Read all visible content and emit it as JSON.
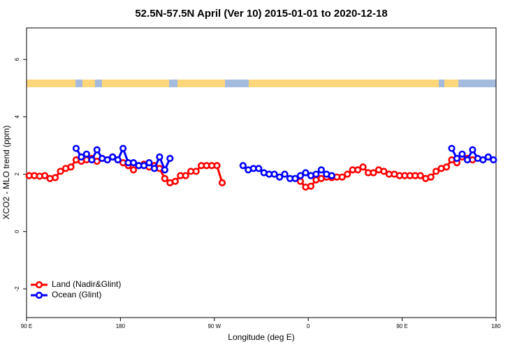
{
  "chart_data": {
    "type": "line",
    "title": "52.5N-57.5N April (Ver 10)   2015-01-01 to 2020-12-18",
    "xlabel": "Longitude (deg E)",
    "ylabel": "XCO2 - MLO trend (ppm)",
    "xlim": [
      90,
      540
    ],
    "ylim": [
      -3,
      7.1
    ],
    "xticks": [
      {
        "value": 90,
        "label": "90 E"
      },
      {
        "value": 180,
        "label": "180"
      },
      {
        "value": 270,
        "label": "90 W"
      },
      {
        "value": 360,
        "label": "0"
      },
      {
        "value": 450,
        "label": "90 E"
      },
      {
        "value": 540,
        "label": "180"
      }
    ],
    "yticks": [
      -2,
      0,
      2,
      4,
      6
    ],
    "legend": "bottom-left",
    "series": [
      {
        "name": "Land (Nadir&Glint)",
        "color": "#ff0000",
        "x": [
          92.5,
          97.5,
          102.5,
          107.5,
          112.5,
          117.5,
          122.5,
          127.5,
          132.5,
          137.5,
          142.5,
          147.5,
          152.5,
          157.5,
          162.5,
          167.5,
          172.5,
          177.5,
          182.5,
          187.5,
          192.5,
          197.5,
          202.5,
          207.5,
          212.5,
          217.5,
          222.5,
          227.5,
          232.5,
          237.5,
          242.5,
          247.5,
          252.5,
          257.5,
          262.5,
          267.5,
          272.5,
          277.5,
          315,
          352.5,
          357.5,
          362.5,
          367.5,
          372.5,
          377.5,
          382.5,
          387.5,
          392.5,
          397.5,
          402.5,
          407.5,
          412.5,
          417.5,
          422.5,
          427.5,
          432.5,
          437.5,
          442.5,
          447.5,
          452.5,
          457.5,
          462.5,
          467.5,
          472.5,
          477.5,
          482.5,
          487.5,
          492.5,
          497.5,
          502.5,
          507.5,
          512.5,
          517.5
        ],
        "values": [
          1.95,
          1.95,
          1.93,
          1.95,
          1.85,
          1.88,
          2.1,
          2.2,
          2.25,
          2.5,
          2.45,
          2.5,
          2.55,
          2.45,
          2.55,
          2.5,
          2.6,
          2.5,
          2.4,
          2.3,
          2.15,
          2.3,
          2.35,
          2.25,
          2.3,
          2.2,
          1.85,
          1.7,
          1.75,
          1.95,
          1.95,
          2.1,
          2.1,
          2.3,
          2.3,
          2.3,
          2.3,
          1.7,
          null,
          1.75,
          1.55,
          1.58,
          1.8,
          1.85,
          1.9,
          1.88,
          1.9,
          1.9,
          2.0,
          2.15,
          2.15,
          2.25,
          2.05,
          2.05,
          2.15,
          2.1,
          2.0,
          2.0,
          1.95,
          1.95,
          1.95,
          1.95,
          1.95,
          1.85,
          1.9,
          2.1,
          2.2,
          2.25,
          2.5,
          2.4,
          2.6,
          2.55,
          2.5
        ]
      },
      {
        "name": "Ocean (Glint)",
        "color": "#0000ff",
        "x": [
          137.5,
          142.5,
          147.5,
          152.5,
          157.5,
          162.5,
          167.5,
          172.5,
          177.5,
          182.5,
          187.5,
          192.5,
          197.5,
          202.5,
          207.5,
          212.5,
          217.5,
          222.5,
          227.5,
          260,
          297.5,
          302.5,
          307.5,
          312.5,
          317.5,
          322.5,
          327.5,
          332.5,
          337.5,
          342.5,
          347.5,
          352.5,
          357.5,
          362.5,
          367.5,
          372.5,
          377.5,
          382.5,
          440,
          497.5,
          502.5,
          507.5,
          512.5,
          517.5,
          522.5,
          527.5,
          532.5,
          537.5
        ],
        "values": [
          2.9,
          2.6,
          2.7,
          2.5,
          2.85,
          2.55,
          2.5,
          2.6,
          2.5,
          2.9,
          2.4,
          2.4,
          2.3,
          2.3,
          2.4,
          2.2,
          2.6,
          2.15,
          2.55,
          null,
          2.3,
          2.15,
          2.2,
          2.2,
          2.05,
          2.0,
          2.0,
          1.9,
          2.0,
          1.85,
          1.85,
          1.95,
          2.05,
          1.95,
          2.0,
          2.15,
          2.0,
          1.95,
          null,
          2.9,
          2.55,
          2.7,
          2.5,
          2.85,
          2.55,
          2.5,
          2.6,
          2.5
        ]
      }
    ]
  }
}
